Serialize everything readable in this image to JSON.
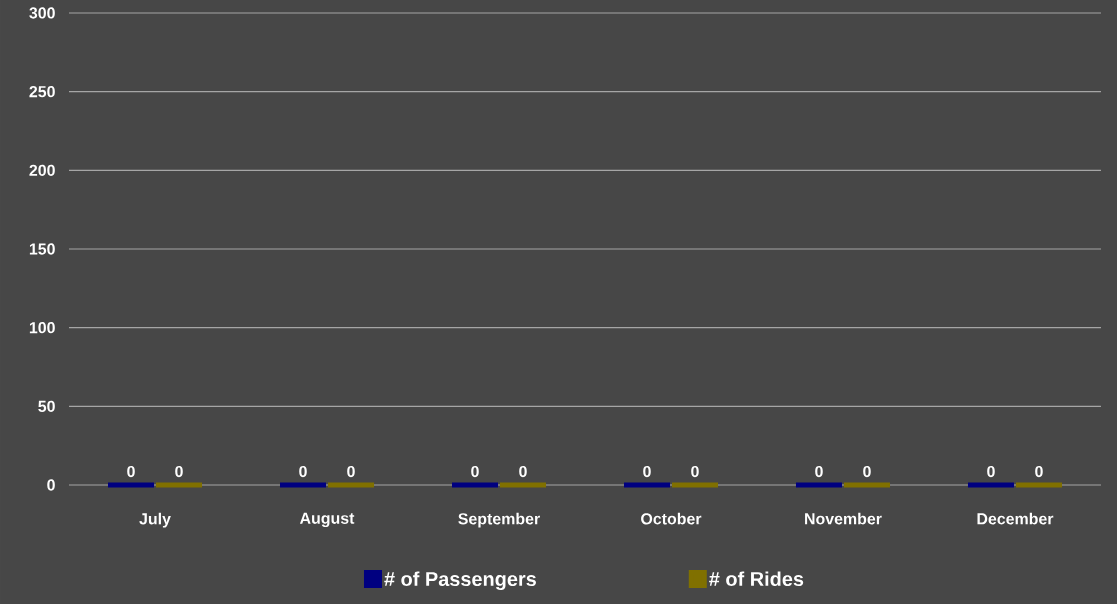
{
  "chart_data": {
    "type": "bar",
    "categories": [
      "July",
      "August",
      "September",
      "October",
      "November",
      "December"
    ],
    "series": [
      {
        "name": "# of Passengers",
        "color": "#000080",
        "values": [
          0,
          0,
          0,
          0,
          0,
          0
        ]
      },
      {
        "name": "# of Rides",
        "color": "#807000",
        "values": [
          0,
          0,
          0,
          0,
          0,
          0
        ]
      }
    ],
    "ylim": [
      0,
      300
    ],
    "yticks": [
      0,
      50,
      100,
      150,
      200,
      250,
      300
    ],
    "grid": "y",
    "legend": "bottom",
    "data_labels": true
  }
}
